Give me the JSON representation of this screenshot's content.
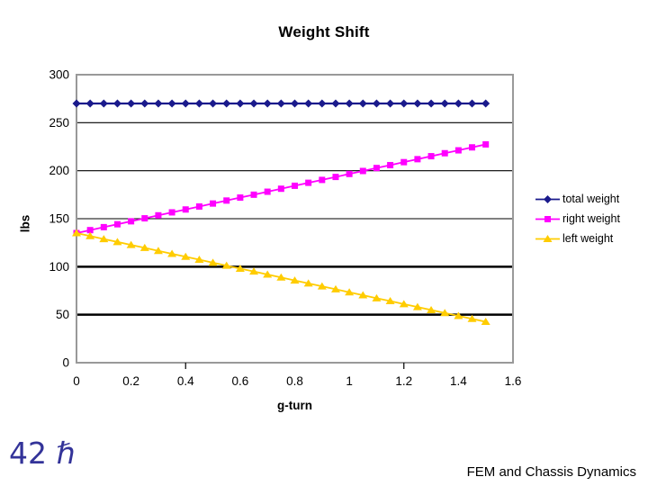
{
  "footer": {
    "slide_mark": "42 ℏ",
    "slide_mark_color": "#333399",
    "caption": "FEM and Chassis Dynamics"
  },
  "chart_data": {
    "type": "line",
    "title": "Weight Shift",
    "xlabel": "g-turn",
    "ylabel": "lbs",
    "xlim": [
      0,
      1.6
    ],
    "ylim": [
      0,
      300
    ],
    "grid": "horizontal",
    "legend_position": "right",
    "frame_color": "#999999",
    "x_ticks": [
      0,
      0.2,
      0.4,
      0.6,
      0.8,
      1,
      1.2,
      1.4,
      1.6
    ],
    "x_tick_labels": [
      "0",
      "0.2",
      "0.4",
      "0.6",
      "0.8",
      "1",
      "1.2",
      "1.4",
      "1.6"
    ],
    "y_ticks": [
      0,
      50,
      100,
      150,
      200,
      250,
      300
    ],
    "emphasized_gridlines": [
      50,
      100
    ],
    "x_minor_tickmarks": [
      0.4,
      1.2
    ],
    "x": [
      0,
      0.05,
      0.1,
      0.15,
      0.2,
      0.25,
      0.3,
      0.35,
      0.4,
      0.45,
      0.5,
      0.55,
      0.6,
      0.65,
      0.7,
      0.75,
      0.8,
      0.85,
      0.9,
      0.95,
      1,
      1.05,
      1.1,
      1.15,
      1.2,
      1.25,
      1.3,
      1.35,
      1.4,
      1.45,
      1.5
    ],
    "series": [
      {
        "name": "total weight",
        "color": "#1A1A8C",
        "marker": "diamond",
        "values": [
          270,
          270,
          270,
          270,
          270,
          270,
          270,
          270,
          270,
          270,
          270,
          270,
          270,
          270,
          270,
          270,
          270,
          270,
          270,
          270,
          270,
          270,
          270,
          270,
          270,
          270,
          270,
          270,
          270,
          270,
          270
        ]
      },
      {
        "name": "right weight",
        "color": "#FF00FF",
        "marker": "square",
        "values": [
          135,
          138.1,
          141.2,
          144.2,
          147.3,
          150.4,
          153.5,
          156.6,
          159.6,
          162.7,
          165.8,
          168.9,
          172,
          175,
          178.1,
          181.2,
          184.3,
          187.4,
          190.4,
          193.5,
          196.6,
          199.7,
          202.8,
          205.8,
          208.9,
          212,
          215.1,
          218.2,
          221.2,
          224.3,
          227.4
        ]
      },
      {
        "name": "left weight",
        "color": "#FFCC00",
        "marker": "triangle",
        "values": [
          135,
          131.9,
          128.8,
          125.8,
          122.7,
          119.6,
          116.5,
          113.4,
          110.4,
          107.3,
          104.2,
          101.1,
          98,
          95,
          91.9,
          88.8,
          85.7,
          82.6,
          79.6,
          76.5,
          73.4,
          70.3,
          67.2,
          64.2,
          61.1,
          58,
          54.9,
          51.8,
          48.8,
          45.7,
          42.6
        ]
      }
    ]
  }
}
